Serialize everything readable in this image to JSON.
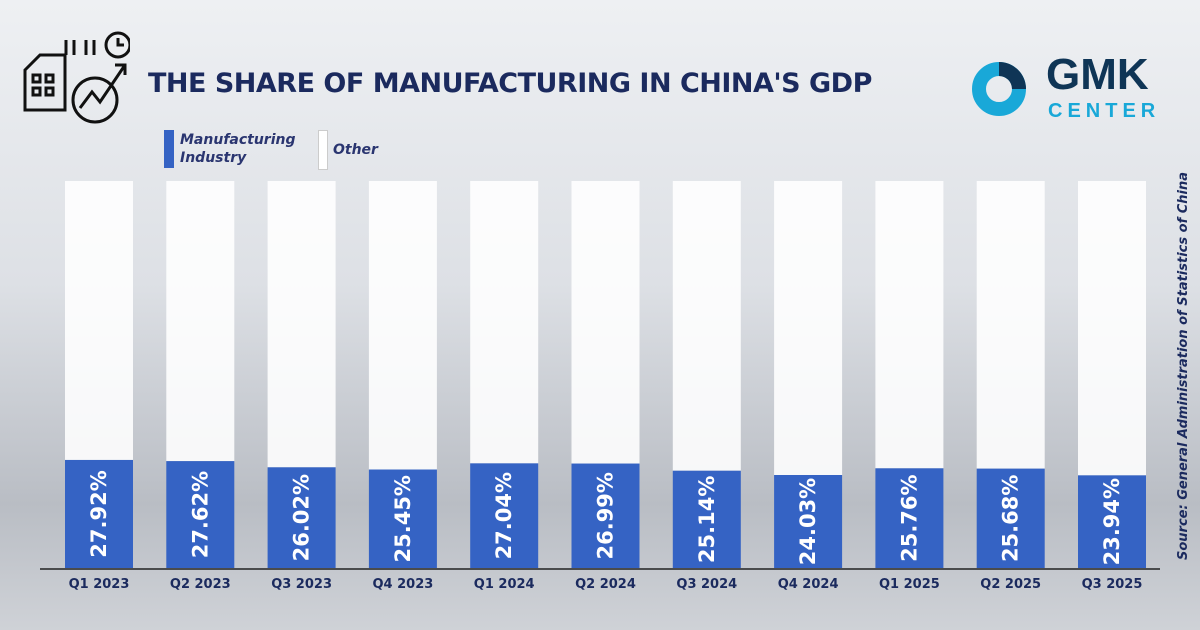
{
  "header": {
    "title": "THE SHARE OF MANUFACTURING IN CHINA'S GDP"
  },
  "logo": {
    "line1": "GMK",
    "line2": "CENTER",
    "colors": {
      "dark": "#0f3556",
      "light": "#19a8d8"
    }
  },
  "source": "Source: General Administration of Statistics of China",
  "chart_data": {
    "type": "bar",
    "stacked": true,
    "title": "THE SHARE OF MANUFACTURING IN CHINA'S GDP",
    "categories": [
      "Q1 2023",
      "Q2 2023",
      "Q3 2023",
      "Q4 2023",
      "Q1 2024",
      "Q2 2024",
      "Q3 2024",
      "Q4 2024",
      "Q1 2025",
      "Q2 2025",
      "Q3 2025"
    ],
    "series": [
      {
        "name": "Manufacturing Industry",
        "color": "#3563c4",
        "values": [
          27.92,
          27.62,
          26.02,
          25.45,
          27.04,
          26.99,
          25.14,
          24.03,
          25.76,
          25.68,
          23.94
        ]
      },
      {
        "name": "Other",
        "color": "#ffffff"
      }
    ],
    "data_labels": [
      "27.92%",
      "27.62%",
      "26.02%",
      "25.45%",
      "27.04%",
      "26.99%",
      "25.14%",
      "24.03%",
      "25.76%",
      "25.68%",
      "23.94%"
    ],
    "ylim": [
      0,
      100
    ],
    "legend": "top-left",
    "grid": false
  }
}
